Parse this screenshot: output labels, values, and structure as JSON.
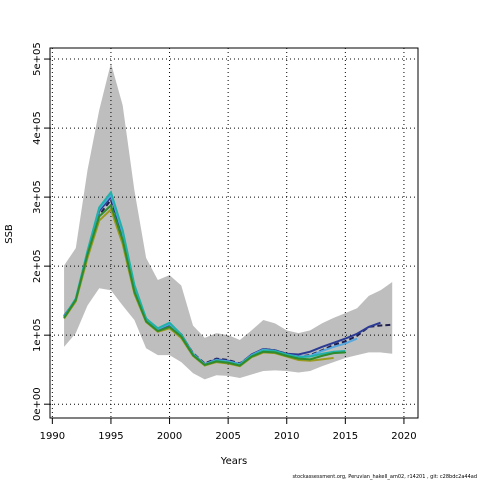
{
  "chart_data": {
    "type": "line",
    "x_label": "Years",
    "y_label": "SSB",
    "footnote": "stockassessment.org, Peruvian_hakeII_am02, r14201 , git: c28bdc2a44ad",
    "x": [
      1991,
      1992,
      1993,
      1994,
      1995,
      1996,
      1997,
      1998,
      1999,
      2000,
      2001,
      2002,
      2003,
      2004,
      2005,
      2006,
      2007,
      2008,
      2009,
      2010,
      2011,
      2012,
      2013,
      2014,
      2015,
      2016,
      2017,
      2018,
      2019
    ],
    "band": {
      "color": "#bebebe",
      "upper": [
        201000,
        226000,
        339000,
        426000,
        494000,
        433000,
        310000,
        212000,
        180000,
        187000,
        172000,
        114000,
        96000,
        103000,
        100000,
        93000,
        107000,
        122000,
        117000,
        107000,
        103000,
        107000,
        117000,
        125000,
        132000,
        139000,
        157000,
        165000,
        177000
      ],
      "lower": [
        83000,
        103000,
        143000,
        168000,
        165000,
        143000,
        122000,
        81000,
        71000,
        71000,
        61000,
        45000,
        36000,
        42000,
        41000,
        38000,
        43000,
        48000,
        49000,
        48000,
        46000,
        48000,
        55000,
        61000,
        67000,
        71000,
        75000,
        75000,
        73000
      ]
    },
    "series": [
      {
        "color": "#1f1f4f",
        "dash": true,
        "values": [
          127000,
          150000,
          215000,
          274000,
          296000,
          240000,
          165000,
          122000,
          107000,
          114000,
          100000,
          74000,
          59000,
          66000,
          64000,
          59000,
          71000,
          80000,
          78000,
          73000,
          69000,
          71000,
          78000,
          86000,
          91000,
          99000,
          112000,
          114000,
          115000
        ]
      },
      {
        "color": "#2b3a94",
        "values": [
          128000,
          151000,
          218000,
          280000,
          300000,
          245000,
          168000,
          124000,
          108000,
          115000,
          101000,
          73000,
          58000,
          65000,
          63000,
          58000,
          72000,
          80000,
          78000,
          73000,
          72000,
          76000,
          83000,
          89000,
          95000,
          102000,
          112000,
          118000,
          null
        ]
      },
      {
        "color": "#55a8e0",
        "values": [
          127000,
          152000,
          220000,
          283000,
          303000,
          248000,
          170000,
          123000,
          109000,
          116000,
          100000,
          73000,
          58000,
          64000,
          62000,
          58000,
          71000,
          79000,
          77000,
          72000,
          69000,
          70000,
          77000,
          83000,
          88000,
          95000,
          null,
          null,
          null
        ]
      },
      {
        "color": "#20b2aa",
        "values": [
          126000,
          153000,
          222000,
          285000,
          307000,
          252000,
          173000,
          124000,
          110000,
          118000,
          101000,
          72000,
          57000,
          63000,
          61000,
          57000,
          70000,
          78000,
          77000,
          72000,
          68000,
          69000,
          73000,
          76000,
          77000,
          null,
          null,
          null,
          null
        ]
      },
      {
        "color": "#9a9a1e",
        "values": [
          124000,
          149000,
          212000,
          266000,
          282000,
          232000,
          160000,
          119000,
          105000,
          110000,
          96000,
          70000,
          56000,
          61000,
          59000,
          55000,
          68000,
          75000,
          74000,
          69000,
          64000,
          63000,
          65000,
          67000,
          null,
          null,
          null,
          null,
          null
        ]
      },
      {
        "color": "#2e8b2e",
        "values": [
          125000,
          151000,
          217000,
          272000,
          288000,
          238000,
          163000,
          120000,
          106000,
          112000,
          98000,
          71000,
          57000,
          62000,
          60000,
          56000,
          69000,
          76000,
          75000,
          70000,
          66000,
          65000,
          70000,
          74000,
          75000,
          null,
          null,
          null,
          null
        ]
      }
    ],
    "xlim": [
      1989.8,
      2021.2
    ],
    "ylim": [
      -20000,
      516000
    ],
    "xticks": [
      1990,
      1995,
      2000,
      2005,
      2010,
      2015,
      2020
    ],
    "yticks": [
      {
        "value": 0,
        "label": "0e+00"
      },
      {
        "value": 100000,
        "label": "1e+05"
      },
      {
        "value": 200000,
        "label": "2e+05"
      },
      {
        "value": 300000,
        "label": "3e+05"
      },
      {
        "value": 400000,
        "label": "4e+05"
      },
      {
        "value": 500000,
        "label": "5e+05"
      }
    ],
    "grid": true
  }
}
